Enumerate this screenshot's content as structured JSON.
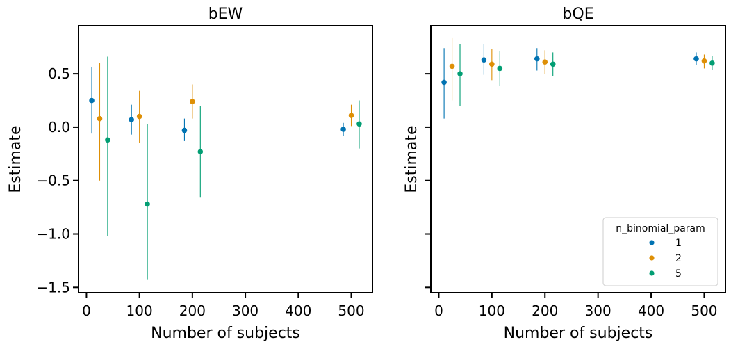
{
  "chart_data": [
    {
      "type": "scatter",
      "title": "bEW",
      "xlabel": "Number of subjects",
      "ylabel": "Estimate",
      "xlim": [
        -15,
        540
      ],
      "ylim": [
        -1.55,
        0.95
      ],
      "xticks": [
        0,
        100,
        200,
        300,
        400,
        500
      ],
      "xtick_labels": [
        "0",
        "100",
        "200",
        "300",
        "400",
        "500"
      ],
      "yticks": [
        -1.5,
        -1.0,
        -0.5,
        0.0,
        0.5
      ],
      "ytick_labels": [
        "−1.5",
        "−1.0",
        "−0.5",
        "0.0",
        "0.5"
      ],
      "series": [
        {
          "name": "1",
          "color": "#0173b2",
          "points": [
            {
              "x": 10,
              "y": 0.25,
              "lo": -0.06,
              "hi": 0.56
            },
            {
              "x": 85,
              "y": 0.07,
              "lo": -0.07,
              "hi": 0.21
            },
            {
              "x": 185,
              "y": -0.03,
              "lo": -0.13,
              "hi": 0.08
            },
            {
              "x": 485,
              "y": -0.02,
              "lo": -0.08,
              "hi": 0.04
            }
          ]
        },
        {
          "name": "2",
          "color": "#de8f05",
          "points": [
            {
              "x": 25,
              "y": 0.08,
              "lo": -0.5,
              "hi": 0.6
            },
            {
              "x": 100,
              "y": 0.1,
              "lo": -0.15,
              "hi": 0.34
            },
            {
              "x": 200,
              "y": 0.24,
              "lo": 0.08,
              "hi": 0.4
            },
            {
              "x": 500,
              "y": 0.11,
              "lo": 0.01,
              "hi": 0.21
            }
          ]
        },
        {
          "name": "5",
          "color": "#029e73",
          "points": [
            {
              "x": 40,
              "y": -0.12,
              "lo": -1.02,
              "hi": 0.66
            },
            {
              "x": 115,
              "y": -0.72,
              "lo": -1.43,
              "hi": 0.03
            },
            {
              "x": 215,
              "y": -0.23,
              "lo": -0.66,
              "hi": 0.2
            },
            {
              "x": 515,
              "y": 0.03,
              "lo": -0.2,
              "hi": 0.25
            }
          ]
        }
      ]
    },
    {
      "type": "scatter",
      "title": "bQE",
      "xlabel": "Number of subjects",
      "ylabel": "Estimate",
      "xlim": [
        -15,
        540
      ],
      "ylim": [
        -1.55,
        0.95
      ],
      "xticks": [
        0,
        100,
        200,
        300,
        400,
        500
      ],
      "xtick_labels": [
        "0",
        "100",
        "200",
        "300",
        "400",
        "500"
      ],
      "yticks": [
        -1.5,
        -1.0,
        -0.5,
        0.0,
        0.5
      ],
      "ytick_labels": [],
      "legend": {
        "title": "n_binomial_param",
        "placement": "bottom-right",
        "entries": [
          "1",
          "2",
          "5"
        ]
      },
      "series": [
        {
          "name": "1",
          "color": "#0173b2",
          "points": [
            {
              "x": 10,
              "y": 0.42,
              "lo": 0.08,
              "hi": 0.74
            },
            {
              "x": 85,
              "y": 0.63,
              "lo": 0.49,
              "hi": 0.78
            },
            {
              "x": 185,
              "y": 0.64,
              "lo": 0.53,
              "hi": 0.74
            },
            {
              "x": 485,
              "y": 0.64,
              "lo": 0.58,
              "hi": 0.7
            }
          ]
        },
        {
          "name": "2",
          "color": "#de8f05",
          "points": [
            {
              "x": 25,
              "y": 0.57,
              "lo": 0.25,
              "hi": 0.84
            },
            {
              "x": 100,
              "y": 0.59,
              "lo": 0.44,
              "hi": 0.73
            },
            {
              "x": 200,
              "y": 0.61,
              "lo": 0.5,
              "hi": 0.72
            },
            {
              "x": 500,
              "y": 0.62,
              "lo": 0.55,
              "hi": 0.68
            }
          ]
        },
        {
          "name": "5",
          "color": "#029e73",
          "points": [
            {
              "x": 40,
              "y": 0.5,
              "lo": 0.2,
              "hi": 0.78
            },
            {
              "x": 115,
              "y": 0.55,
              "lo": 0.39,
              "hi": 0.71
            },
            {
              "x": 215,
              "y": 0.59,
              "lo": 0.48,
              "hi": 0.7
            },
            {
              "x": 515,
              "y": 0.6,
              "lo": 0.54,
              "hi": 0.67
            }
          ]
        }
      ]
    }
  ]
}
